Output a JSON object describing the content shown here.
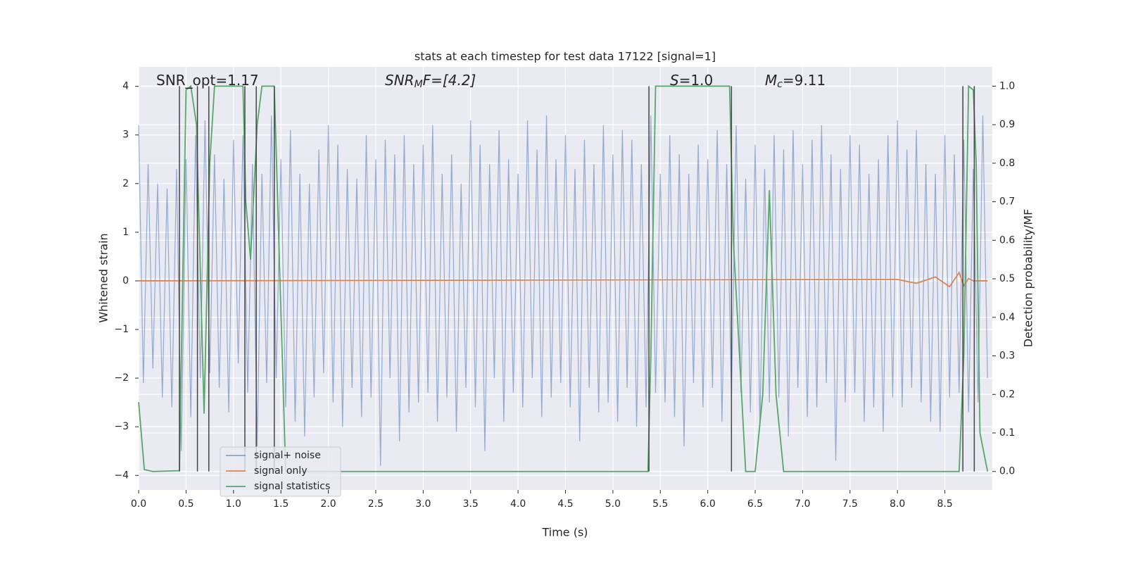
{
  "chart_data": {
    "type": "line",
    "title": "stats at each timestep for test data 17122 [signal=1]",
    "x_label": "Time (s)",
    "y_label": "Whitened strain",
    "y2_label": "Detection probability/MF",
    "xlim": [
      0,
      9
    ],
    "ylim": [
      -4.3,
      4.4
    ],
    "y2lim": [
      -0.048,
      1.05
    ],
    "xticks": [
      {
        "value": 0,
        "label": "0.0"
      },
      0.5,
      {
        "value": 1,
        "label": "1.0"
      },
      1.5,
      {
        "value": 2,
        "label": "2.0"
      },
      2.5,
      {
        "value": 3,
        "label": "3.0"
      },
      3.5,
      {
        "value": 4,
        "label": "4.0"
      },
      4.5,
      {
        "value": 5,
        "label": "5.0"
      },
      5.5,
      {
        "value": 6,
        "label": "6.0"
      },
      6.5,
      {
        "value": 7,
        "label": "7.0"
      },
      7.5,
      {
        "value": 8,
        "label": "8.0"
      },
      8.5
    ],
    "yticks": [
      {
        "value": -4,
        "label": "−4"
      },
      {
        "value": -3,
        "label": "−3"
      },
      {
        "value": -2,
        "label": "−2"
      },
      {
        "value": -1,
        "label": "−1"
      },
      0,
      1,
      2,
      3,
      4
    ],
    "y2ticks": [
      {
        "value": 0,
        "label": "0.0"
      },
      0.1,
      0.2,
      0.3,
      0.4,
      0.5,
      0.6,
      0.7,
      0.8,
      0.9,
      {
        "value": 1,
        "label": "1.0"
      }
    ],
    "grid": true,
    "legend": "lower left",
    "annotations": [
      {
        "main": "SNR_opt=1.17",
        "italic": false
      },
      {
        "main": "SNR",
        "sub": "M",
        "rest": "F=[4.2]",
        "italic": true
      },
      {
        "main": "S",
        "rest": "=1.0",
        "italic": true
      },
      {
        "main": "M",
        "sub": "c",
        "rest": "=9.11",
        "italic": true
      }
    ],
    "vlines": [
      0.43,
      0.62,
      0.74,
      1.12,
      1.24,
      1.43,
      5.38,
      6.25,
      8.69,
      8.81
    ],
    "vline_color": "#444444",
    "series": [
      {
        "name": "signal+ noise",
        "color": "#4c72b0",
        "axis": "y",
        "x": [
          0,
          0.05,
          0.1,
          0.15,
          0.2,
          0.25,
          0.3,
          0.35,
          0.4,
          0.45,
          0.5,
          0.55,
          0.6,
          0.65,
          0.7,
          0.75,
          0.8,
          0.85,
          0.9,
          0.95,
          1,
          1.05,
          1.1,
          1.15,
          1.2,
          1.25,
          1.3,
          1.35,
          1.4,
          1.45,
          1.5,
          1.55,
          1.6,
          1.65,
          1.7,
          1.75,
          1.8,
          1.85,
          1.9,
          1.95,
          2,
          2.05,
          2.1,
          2.15,
          2.2,
          2.25,
          2.3,
          2.35,
          2.4,
          2.45,
          2.5,
          2.55,
          2.6,
          2.65,
          2.7,
          2.75,
          2.8,
          2.85,
          2.9,
          2.95,
          3,
          3.05,
          3.1,
          3.15,
          3.2,
          3.25,
          3.3,
          3.35,
          3.4,
          3.45,
          3.5,
          3.55,
          3.6,
          3.65,
          3.7,
          3.75,
          3.8,
          3.85,
          3.9,
          3.95,
          4,
          4.05,
          4.1,
          4.15,
          4.2,
          4.25,
          4.3,
          4.35,
          4.4,
          4.45,
          4.5,
          4.55,
          4.6,
          4.65,
          4.7,
          4.75,
          4.8,
          4.85,
          4.9,
          4.95,
          5,
          5.05,
          5.1,
          5.15,
          5.2,
          5.25,
          5.3,
          5.35,
          5.4,
          5.45,
          5.5,
          5.55,
          5.6,
          5.65,
          5.7,
          5.75,
          5.8,
          5.85,
          5.9,
          5.95,
          6,
          6.05,
          6.1,
          6.15,
          6.2,
          6.25,
          6.3,
          6.35,
          6.4,
          6.45,
          6.5,
          6.55,
          6.6,
          6.65,
          6.7,
          6.75,
          6.8,
          6.85,
          6.9,
          6.95,
          7,
          7.05,
          7.1,
          7.15,
          7.2,
          7.25,
          7.3,
          7.35,
          7.4,
          7.45,
          7.5,
          7.55,
          7.6,
          7.65,
          7.7,
          7.75,
          7.8,
          7.85,
          7.9,
          7.95,
          8,
          8.05,
          8.1,
          8.15,
          8.2,
          8.25,
          8.3,
          8.35,
          8.4,
          8.45,
          8.5,
          8.55,
          8.6,
          8.65,
          8.7,
          8.75,
          8.8,
          8.85,
          8.9,
          8.95
        ],
        "values": [
          3.2,
          -2.1,
          2.4,
          -1.8,
          2.0,
          -2.4,
          1.9,
          -2.6,
          2.3,
          -3.5,
          2.5,
          -2.8,
          3.0,
          -2.0,
          3.3,
          -1.9,
          2.6,
          -2.2,
          2.1,
          -2.7,
          2.9,
          -1.7,
          3.0,
          -2.3,
          2.4,
          -3.4,
          2.2,
          -2.1,
          3.4,
          -2.0,
          2.5,
          -2.6,
          3.1,
          -2.9,
          2.2,
          -3.2,
          2.0,
          -2.4,
          2.7,
          -1.9,
          3.2,
          -2.5,
          2.8,
          -3.0,
          2.3,
          -2.2,
          2.1,
          -2.8,
          3.0,
          -2.4,
          2.5,
          -3.8,
          2.9,
          -2.0,
          2.6,
          -3.3,
          3.0,
          -2.7,
          2.4,
          -2.5,
          2.8,
          -2.3,
          3.2,
          -2.9,
          2.2,
          -2.4,
          2.6,
          -3.1,
          2.0,
          -2.2,
          3.3,
          -2.6,
          2.8,
          -3.5,
          2.4,
          -2.0,
          3.1,
          -2.9,
          2.5,
          -2.3,
          2.2,
          -2.6,
          3.3,
          -2.0,
          2.7,
          -2.8,
          3.4,
          -2.4,
          2.5,
          -2.1,
          3.0,
          -2.6,
          2.3,
          -3.3,
          2.9,
          -2.2,
          2.4,
          -2.7,
          3.2,
          -2.5,
          2.6,
          -2.9,
          3.1,
          -2.2,
          2.9,
          -3.0,
          2.4,
          -2.6,
          3.4,
          -2.3,
          2.2,
          -2.5,
          3.0,
          -2.8,
          2.6,
          -3.4,
          2.2,
          -2.1,
          2.8,
          -2.6,
          2.5,
          -2.2,
          3.1,
          -2.9,
          2.4,
          -2.4,
          3.2,
          -2.3,
          2.1,
          -2.7,
          2.8,
          -3.0,
          2.3,
          -2.5,
          3.0,
          -2.4,
          2.7,
          -3.2,
          3.1,
          -2.2,
          2.4,
          -2.8,
          2.9,
          -2.6,
          3.2,
          -2.1,
          2.6,
          -3.7,
          2.3,
          -2.5,
          3.0,
          -2.3,
          2.8,
          -2.9,
          2.2,
          -2.6,
          2.5,
          -3.1,
          3.0,
          -2.4,
          3.3,
          -2.6,
          2.7,
          -2.2,
          3.1,
          -2.5,
          2.4,
          -2.9,
          2.2,
          -3.1,
          3.0,
          -2.4,
          2.6,
          -2.3,
          2.9,
          -2.7,
          2.3,
          -2.5,
          3.4,
          -2.0
        ]
      },
      {
        "name": "signal only",
        "color": "#dd8452",
        "axis": "y",
        "x": [
          0,
          8.0,
          8.2,
          8.4,
          8.55,
          8.65,
          8.7,
          8.75,
          8.8,
          8.95
        ],
        "values": [
          0,
          0.03,
          -0.05,
          0.08,
          -0.12,
          0.17,
          -0.1,
          0.05,
          0,
          0
        ]
      },
      {
        "name": "signal statistics",
        "color": "#55a868",
        "axis": "y2",
        "x": [
          0,
          0.06,
          0.15,
          0.43,
          0.5,
          0.55,
          0.61,
          0.69,
          0.75,
          0.8,
          1.1,
          1.13,
          1.18,
          1.25,
          1.3,
          1.43,
          1.55,
          5.37,
          5.4,
          5.45,
          6.23,
          6.27,
          6.4,
          6.5,
          6.58,
          6.65,
          6.72,
          6.8,
          8.65,
          8.7,
          8.75,
          8.8,
          8.83,
          8.87,
          8.95
        ],
        "values": [
          0.18,
          0.005,
          0,
          0.002,
          0.99,
          1,
          0.9,
          0.15,
          0.8,
          1,
          1,
          0.7,
          0.55,
          0.9,
          1,
          1,
          0,
          0,
          0.3,
          1,
          1,
          0.6,
          0,
          0,
          0.2,
          0.73,
          0.2,
          0,
          0,
          0.3,
          1,
          0.99,
          0.8,
          0.1,
          0
        ]
      }
    ]
  }
}
